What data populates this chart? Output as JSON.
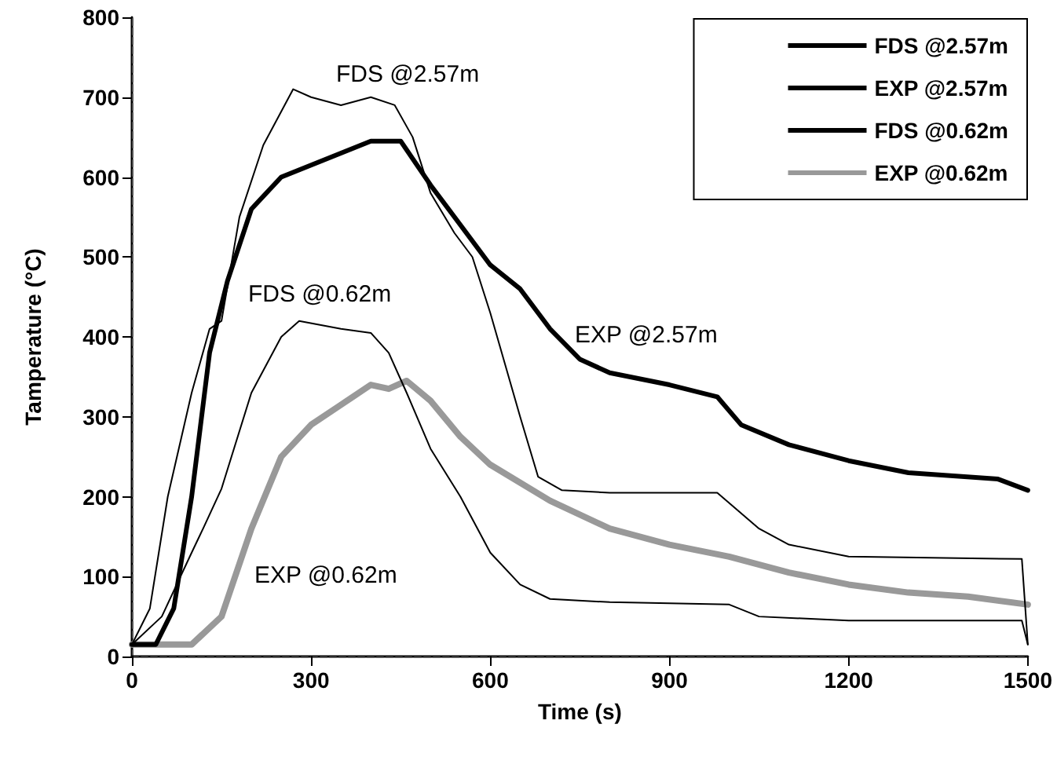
{
  "chart_data": {
    "type": "line",
    "xlabel": "Time (s)",
    "ylabel": "Tamperature (°C)",
    "xlim": [
      0,
      1500
    ],
    "xticks": [
      0,
      300,
      600,
      900,
      1200,
      1500
    ],
    "ylim": [
      0,
      800
    ],
    "yticks": [
      0,
      100,
      200,
      300,
      400,
      500,
      600,
      700,
      800
    ],
    "grid": false,
    "legend": "top right",
    "marker": "none",
    "line_style": "solid",
    "annotations": [
      "FDS @2.57m",
      "EXP @2.57m",
      "FDS @0.62m",
      "EXP @0.62m"
    ],
    "series": [
      {
        "name": "FDS @2.57m",
        "color": "#000000",
        "x": [
          0,
          30,
          60,
          100,
          130,
          150,
          180,
          220,
          270,
          300,
          350,
          400,
          440,
          470,
          500,
          540,
          570,
          600,
          650,
          680,
          720,
          800,
          980,
          1050,
          1100,
          1200,
          1490,
          1500
        ],
        "values": [
          15,
          60,
          200,
          330,
          410,
          420,
          550,
          640,
          710,
          700,
          690,
          700,
          690,
          650,
          580,
          530,
          500,
          430,
          300,
          225,
          208,
          205,
          205,
          160,
          140,
          125,
          122,
          15
        ]
      },
      {
        "name": "EXP @2.57m",
        "color": "#000000",
        "x": [
          0,
          40,
          70,
          100,
          130,
          160,
          200,
          250,
          300,
          350,
          400,
          450,
          500,
          550,
          600,
          650,
          700,
          750,
          800,
          900,
          980,
          1020,
          1100,
          1200,
          1300,
          1450,
          1500
        ],
        "values": [
          15,
          15,
          60,
          200,
          380,
          470,
          560,
          600,
          615,
          630,
          645,
          645,
          590,
          540,
          490,
          460,
          410,
          372,
          355,
          340,
          325,
          290,
          265,
          245,
          230,
          222,
          208
        ]
      },
      {
        "name": "FDS @0.62m",
        "color": "#000000",
        "x": [
          0,
          50,
          100,
          121,
          150,
          200,
          250,
          280,
          350,
          400,
          430,
          460,
          500,
          550,
          600,
          650,
          700,
          800,
          1000,
          1050,
          1200,
          1490,
          1500
        ],
        "values": [
          15,
          50,
          130,
          163,
          210,
          330,
          400,
          420,
          410,
          405,
          380,
          330,
          260,
          200,
          130,
          90,
          72,
          68,
          65,
          50,
          45,
          45,
          15
        ]
      },
      {
        "name": "EXP @0.62m",
        "color": "#999999",
        "x": [
          0,
          100,
          150,
          200,
          250,
          300,
          350,
          400,
          430,
          460,
          500,
          550,
          600,
          700,
          800,
          900,
          1000,
          1100,
          1200,
          1300,
          1400,
          1500
        ],
        "values": [
          15,
          15,
          50,
          160,
          250,
          290,
          315,
          340,
          335,
          345,
          320,
          275,
          240,
          195,
          160,
          140,
          125,
          105,
          90,
          80,
          75,
          65
        ]
      }
    ]
  }
}
